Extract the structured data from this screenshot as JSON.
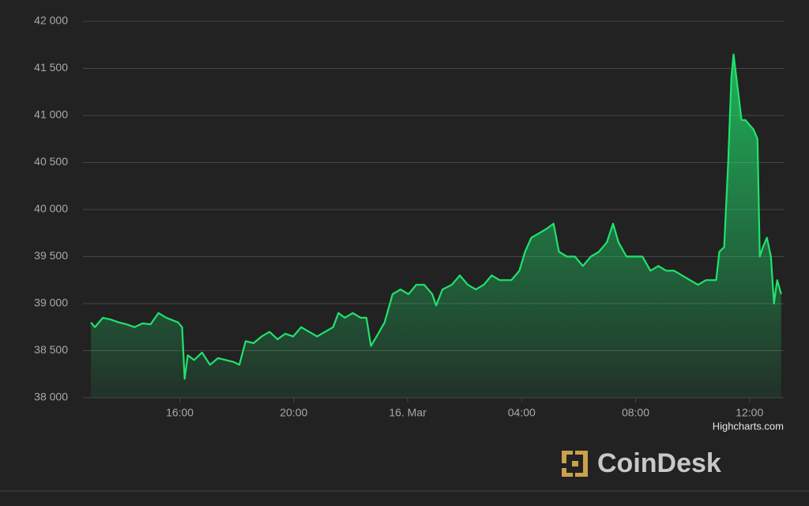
{
  "chart_data": {
    "type": "area",
    "color": "#1fe36d",
    "credit": "Highcharts.com",
    "brand": "CoinDesk",
    "grid": true,
    "xlim": [
      12.6,
      37.2
    ],
    "ylim": [
      38000,
      42000
    ],
    "yticks": [
      {
        "value": 38000,
        "label": "38 000"
      },
      {
        "value": 38500,
        "label": "38 500"
      },
      {
        "value": 39000,
        "label": "39 000"
      },
      {
        "value": 39500,
        "label": "39 500"
      },
      {
        "value": 40000,
        "label": "40 000"
      },
      {
        "value": 40500,
        "label": "40 500"
      },
      {
        "value": 41000,
        "label": "41 000"
      },
      {
        "value": 41500,
        "label": "41 500"
      },
      {
        "value": 42000,
        "label": "42 000"
      }
    ],
    "xticks": [
      {
        "value": 16,
        "label": "16:00"
      },
      {
        "value": 20,
        "label": "20:00"
      },
      {
        "value": 24,
        "label": "16. Mar"
      },
      {
        "value": 28,
        "label": "04:00"
      },
      {
        "value": 32,
        "label": "08:00"
      },
      {
        "value": 36,
        "label": "12:00"
      }
    ],
    "x": [
      12.88,
      13.02,
      13.3,
      13.58,
      13.86,
      14.13,
      14.41,
      14.69,
      14.97,
      15.25,
      15.53,
      15.94,
      16.08,
      16.17,
      16.28,
      16.5,
      16.78,
      17.06,
      17.34,
      17.62,
      17.89,
      18.09,
      18.31,
      18.59,
      18.87,
      19.15,
      19.43,
      19.7,
      19.98,
      20.26,
      20.54,
      20.82,
      21.1,
      21.38,
      21.57,
      21.79,
      22.07,
      22.35,
      22.55,
      22.71,
      22.91,
      23.19,
      23.47,
      23.75,
      24.03,
      24.3,
      24.58,
      24.86,
      25.0,
      25.22,
      25.55,
      25.83,
      26.11,
      26.39,
      26.67,
      26.95,
      27.23,
      27.64,
      27.92,
      28.12,
      28.34,
      28.62,
      28.9,
      29.12,
      29.31,
      29.59,
      29.87,
      30.15,
      30.43,
      30.71,
      30.99,
      31.21,
      31.4,
      31.68,
      31.96,
      32.24,
      32.52,
      32.8,
      33.08,
      33.35,
      33.63,
      33.91,
      34.19,
      34.47,
      34.83,
      34.94,
      35.11,
      35.25,
      35.36,
      35.44,
      35.58,
      35.72,
      35.86,
      36.0,
      36.14,
      36.28,
      36.36,
      36.47,
      36.61,
      36.75,
      36.86,
      36.97,
      37.11
    ],
    "values": [
      38800,
      38750,
      38850,
      38830,
      38800,
      38780,
      38750,
      38790,
      38780,
      38900,
      38850,
      38800,
      38750,
      38200,
      38450,
      38400,
      38480,
      38350,
      38420,
      38400,
      38380,
      38350,
      38600,
      38580,
      38650,
      38700,
      38620,
      38680,
      38650,
      38750,
      38700,
      38650,
      38700,
      38750,
      38900,
      38850,
      38900,
      38850,
      38850,
      38550,
      38650,
      38800,
      39100,
      39150,
      39100,
      39200,
      39200,
      39100,
      38980,
      39150,
      39200,
      39300,
      39200,
      39150,
      39200,
      39300,
      39250,
      39250,
      39350,
      39550,
      39700,
      39750,
      39800,
      39850,
      39550,
      39500,
      39500,
      39400,
      39500,
      39550,
      39650,
      39850,
      39650,
      39500,
      39500,
      39500,
      39350,
      39400,
      39350,
      39350,
      39300,
      39250,
      39200,
      39250,
      39250,
      39550,
      39600,
      40500,
      41400,
      41650,
      41300,
      40950,
      40950,
      40900,
      40850,
      40750,
      39500,
      39600,
      39700,
      39500,
      39000,
      39250,
      39100
    ]
  }
}
